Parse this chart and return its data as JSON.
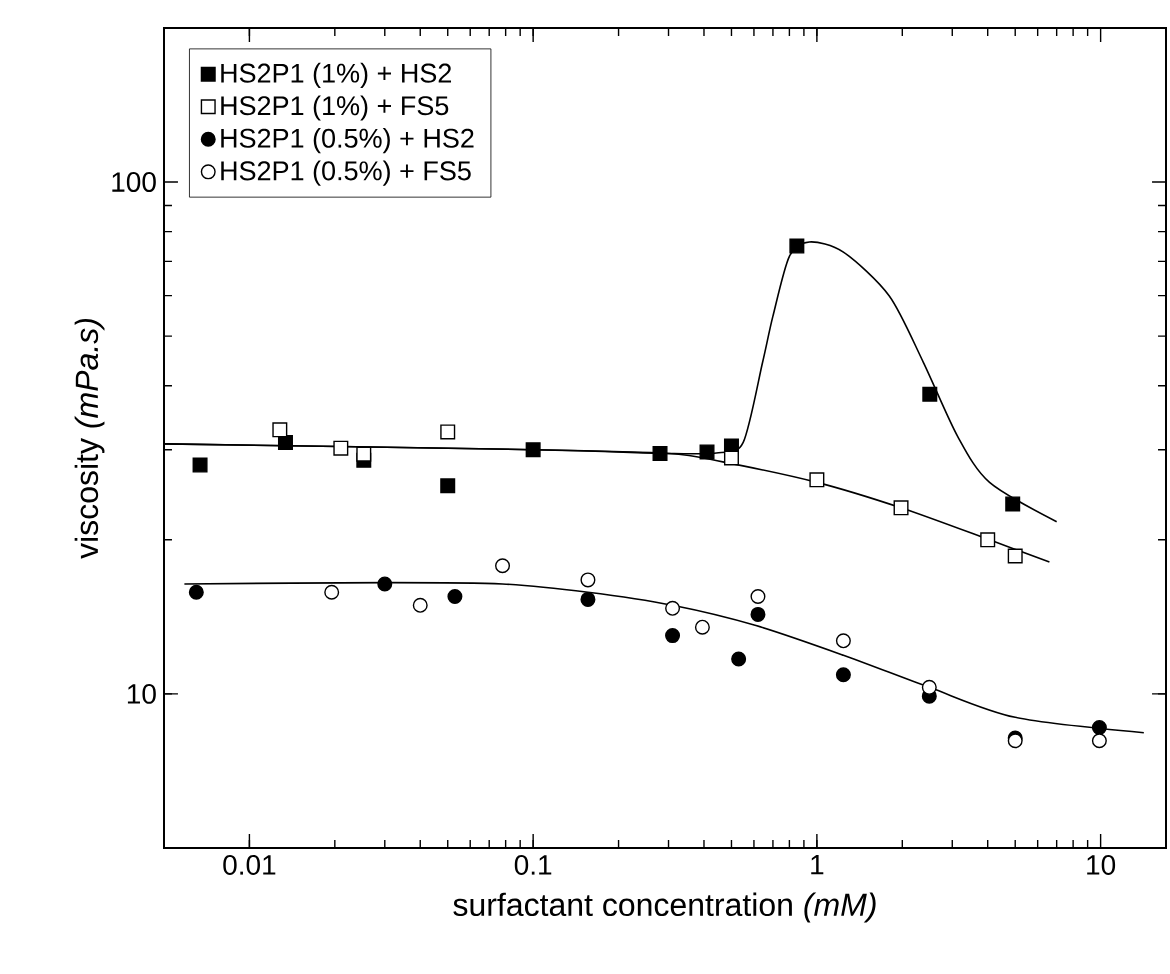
{
  "chart_data": {
    "type": "scatter",
    "xlabel": "surfactant concentration  *(mM)*",
    "ylabel": "viscosity  *(mPa.s)*",
    "log": "xy",
    "xlim": [
      0.005,
      17
    ],
    "ylim": [
      5,
      200
    ],
    "xticks": [
      0.01,
      0.1,
      1,
      10
    ],
    "yticks": [
      10,
      100
    ],
    "legend": "top left",
    "grid": false,
    "series": [
      {
        "name": "HS2P1 (1%)     + HS2",
        "color": "#000000",
        "marker": "square",
        "x": [
          0.0067,
          0.0134,
          0.0253,
          0.05,
          0.1,
          0.28,
          0.41,
          0.5,
          0.85,
          2.5,
          4.9
        ],
        "values": [
          28,
          31,
          28.6,
          25.5,
          30,
          29.5,
          29.7,
          30.5,
          75,
          38.5,
          23.5
        ]
      },
      {
        "name": "HS2P1 (1%)     + FS5",
        "color": "#ffffff",
        "marker": "square",
        "x": [
          0.0128,
          0.021,
          0.0253,
          0.05,
          0.5,
          1.0,
          1.98,
          4.0,
          5.0
        ],
        "values": [
          32.8,
          30.2,
          29.4,
          32.5,
          28.9,
          26.2,
          23.1,
          20,
          18.6
        ]
      },
      {
        "name": "HS2P1 (0.5%) + HS2",
        "color": "#000000",
        "marker": "circle",
        "x": [
          0.0065,
          0.03,
          0.053,
          0.156,
          0.31,
          0.53,
          0.62,
          1.24,
          2.49,
          5.0,
          9.9
        ],
        "values": [
          15.8,
          16.4,
          15.5,
          15.3,
          13,
          11.7,
          14.3,
          10.9,
          9.9,
          8.2,
          8.6
        ]
      },
      {
        "name": "HS2P1 (0.5%) + FS5",
        "color": "#ffffff",
        "marker": "circle",
        "x": [
          0.0195,
          0.04,
          0.078,
          0.156,
          0.31,
          0.395,
          0.62,
          1.24,
          2.49,
          5.0,
          9.9
        ],
        "values": [
          15.8,
          14.9,
          17.8,
          16.7,
          14.7,
          13.5,
          15.5,
          12.7,
          10.3,
          8.1,
          8.1
        ]
      },
      {
        "type": "line",
        "color": "#000000",
        "marker": "none",
        "x": [
          0.005,
          0.1,
          0.3,
          0.45,
          0.55,
          0.644,
          0.7,
          0.8,
          0.94,
          1.24,
          1.8,
          2.37,
          3.13,
          4.06,
          7.0
        ],
        "values": [
          30.8,
          30,
          29.5,
          29.6,
          31,
          44.5,
          54.7,
          71.6,
          76.4,
          73,
          59.9,
          44.5,
          31.9,
          25.9,
          21.7
        ]
      },
      {
        "type": "line",
        "color": "#000000",
        "marker": "none",
        "x": [
          0.005,
          0.1,
          0.3,
          0.466,
          1.0,
          1.98,
          4.06,
          6.6
        ],
        "values": [
          30.8,
          30,
          29.5,
          28.4,
          25.9,
          23.1,
          20,
          18.1
        ]
      },
      {
        "type": "line",
        "color": "#000000",
        "marker": "none",
        "x": [
          0.0059,
          0.031,
          0.078,
          0.156,
          0.31,
          0.61,
          1.24,
          2.49,
          5.0,
          14.2
        ],
        "values": [
          16.4,
          16.5,
          16.4,
          15.8,
          14.9,
          13.6,
          11.9,
          10.3,
          9.0,
          8.4
        ]
      }
    ]
  }
}
